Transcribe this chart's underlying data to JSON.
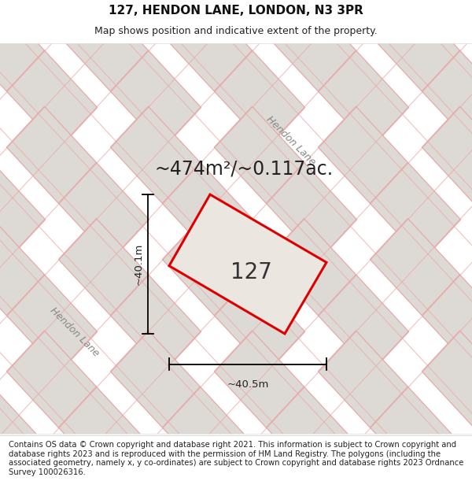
{
  "title_line1": "127, HENDON LANE, LONDON, N3 3PR",
  "title_line2": "Map shows position and indicative extent of the property.",
  "footer_text": "Contains OS data © Crown copyright and database right 2021. This information is subject to Crown copyright and database rights 2023 and is reproduced with the permission of HM Land Registry. The polygons (including the associated geometry, namely x, y co-ordinates) are subject to Crown copyright and database rights 2023 Ordnance Survey 100026316.",
  "map_bg_color": "#f5f3f0",
  "plot_outline_color": "#dd0000",
  "plot_fill_color": "#ebe6e0",
  "road_line_color": "#e8a8a8",
  "building_fill_color": "#dddad5",
  "building_outline_color": "#e0aaaa",
  "road_bg_color": "#f0ece6",
  "area_text": "~474m²/~0.117ac.",
  "area_fontsize": 17,
  "label_127": "127",
  "label_fontsize": 20,
  "dim_width": "~40.5m",
  "dim_height": "~40.1m",
  "road_label_hendon_left": "Hendon Lane",
  "road_label_hendon_top": "Hendon Lane",
  "title_fontsize": 11,
  "subtitle_fontsize": 9,
  "footer_fontsize": 7.2
}
